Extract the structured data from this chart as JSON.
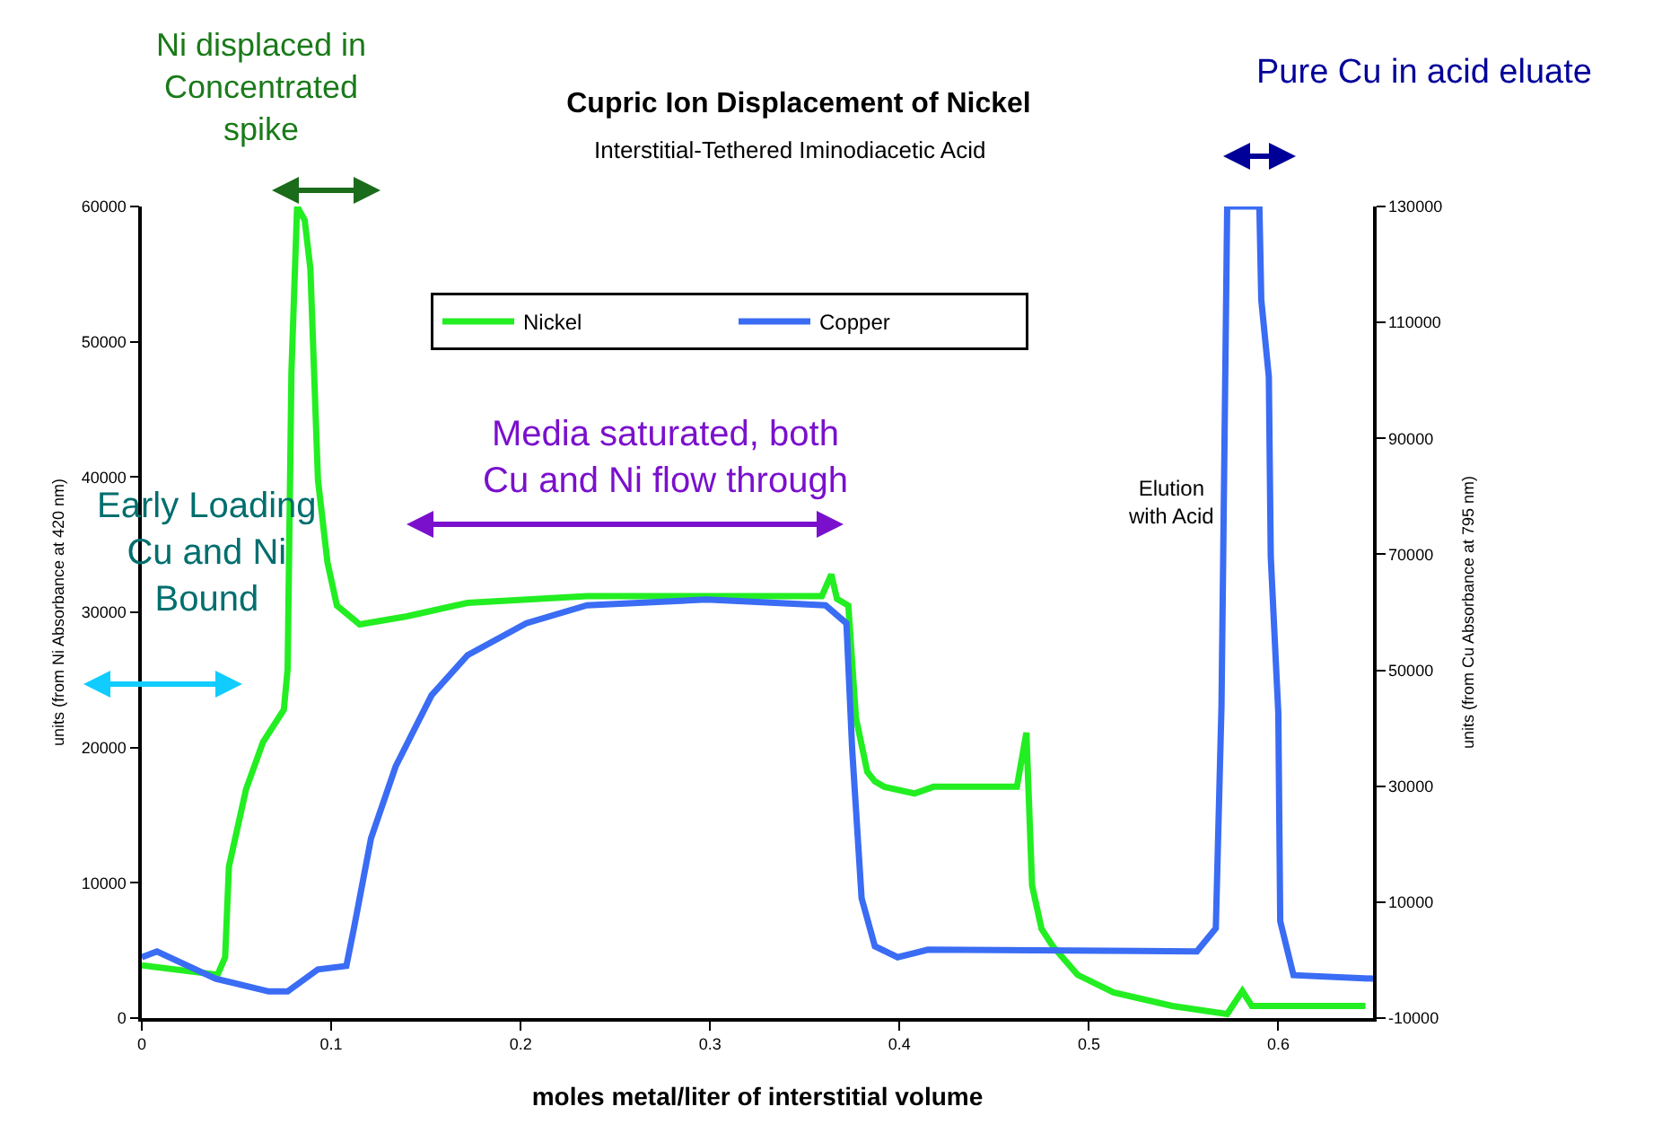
{
  "chart_data": {
    "type": "line",
    "title": "Cupric Ion Displacement of Nickel",
    "subtitle": "Interstitial-Tethered Iminodiacetic Acid",
    "xlabel": "moles metal/liter of interstitial volume",
    "ylabel": "units (from Ni Absorbance at 420 nm)",
    "y2label": "units (from Cu Absorbance at 795 nm)",
    "annotations": [
      "Ni displaced in\nConcentrated\nspike",
      "Early Loading\nCu and Ni\nBound",
      "Media saturated, both\nCu and Ni flow through",
      "Pure Cu in acid eluate",
      "Elution\nwith Acid"
    ],
    "xlim": [
      0,
      0.65
    ],
    "xticks": [
      0,
      0.1,
      0.2,
      0.3,
      0.4,
      0.5,
      0.6
    ],
    "ylim": [
      0,
      60000
    ],
    "yticks": [
      0,
      10000,
      20000,
      30000,
      40000,
      50000,
      60000
    ],
    "y2lim": [
      -10000,
      130000
    ],
    "y2ticks": [
      -10000,
      10000,
      30000,
      50000,
      70000,
      90000,
      110000,
      130000
    ],
    "grid": false,
    "legend": "top",
    "series": [
      {
        "name": "Nickel",
        "color": "#22ee22",
        "x": [
          0,
          0.04,
          0.044,
          0.046,
          0.055,
          0.064,
          0.075,
          0.077,
          0.079,
          0.082,
          0.086,
          0.089,
          0.093,
          0.098,
          0.103,
          0.115,
          0.14,
          0.172,
          0.235,
          0.298,
          0.359,
          0.364,
          0.367,
          0.373,
          0.377,
          0.383,
          0.387,
          0.392,
          0.408,
          0.418,
          0.462,
          0.467,
          0.468,
          0.47,
          0.475,
          0.481,
          0.494,
          0.513,
          0.544,
          0.573,
          0.581,
          0.586,
          0.646
        ],
        "values": [
          3900,
          3200,
          4500,
          11200,
          16900,
          20400,
          22800,
          25800,
          47800,
          60000,
          59000,
          55400,
          39800,
          33700,
          30500,
          29100,
          29700,
          30700,
          31200,
          31200,
          31200,
          32800,
          31000,
          30500,
          22200,
          18200,
          17500,
          17100,
          16600,
          17100,
          17100,
          21100,
          17300,
          9800,
          6600,
          5300,
          3200,
          1900,
          900,
          300,
          2000,
          900,
          900
        ]
      },
      {
        "name": "Copper",
        "color": "#3a6cf4",
        "axis": "y2",
        "x": [
          0,
          0.008,
          0.039,
          0.067,
          0.077,
          0.093,
          0.108,
          0.112,
          0.121,
          0.134,
          0.153,
          0.172,
          0.203,
          0.235,
          0.298,
          0.361,
          0.372,
          0.375,
          0.38,
          0.387,
          0.399,
          0.415,
          0.557,
          0.567,
          0.57,
          0.573,
          0.59,
          0.591,
          0.595,
          0.596,
          0.6,
          0.601,
          0.608,
          0.65
        ],
        "values": [
          500,
          1500,
          -3200,
          -5400,
          -5400,
          -1600,
          -1000,
          5500,
          21000,
          33400,
          45700,
          52600,
          58100,
          61200,
          62200,
          61200,
          58100,
          36500,
          10700,
          2400,
          500,
          1800,
          1500,
          5500,
          43900,
          130000,
          130000,
          113900,
          100600,
          69600,
          42600,
          6700,
          -2600,
          -3200
        ]
      }
    ]
  }
}
